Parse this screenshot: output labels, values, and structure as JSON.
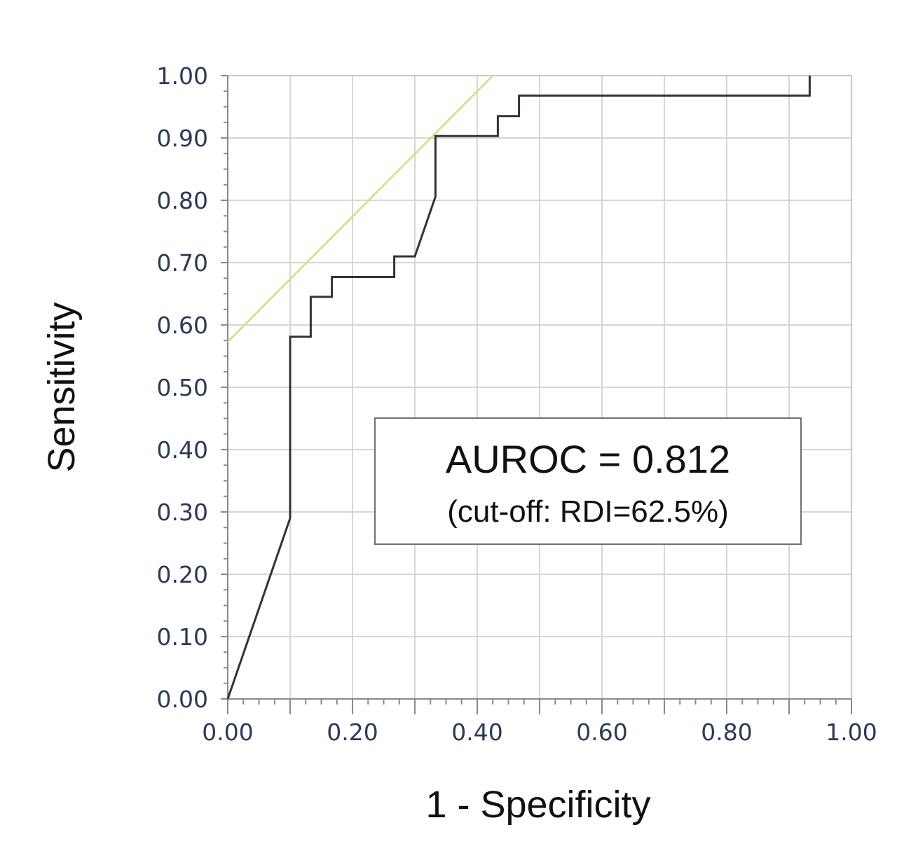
{
  "chart_data": {
    "type": "line",
    "xlabel": "1 - Specificity",
    "ylabel": "Sensitivity",
    "xlim": [
      0,
      1
    ],
    "ylim": [
      0,
      1
    ],
    "x_ticks": [
      "0.00",
      "0.20",
      "0.40",
      "0.60",
      "0.80",
      "1.00"
    ],
    "y_ticks": [
      "0.00",
      "0.10",
      "0.20",
      "0.30",
      "0.40",
      "0.50",
      "0.60",
      "0.70",
      "0.80",
      "0.90",
      "1.00"
    ],
    "grid": true,
    "series": [
      {
        "type": "step",
        "color": "#333333",
        "x": [
          0.0,
          0.1,
          0.1,
          0.133,
          0.133,
          0.167,
          0.167,
          0.267,
          0.267,
          0.3,
          0.333,
          0.333,
          0.433,
          0.433,
          0.467,
          0.467,
          0.933,
          0.933
        ],
        "y": [
          0.0,
          0.29,
          0.581,
          0.581,
          0.645,
          0.645,
          0.677,
          0.677,
          0.71,
          0.71,
          0.806,
          0.903,
          0.903,
          0.935,
          0.935,
          0.968,
          0.968,
          1.0
        ]
      },
      {
        "type": "reference-line",
        "color": "#d9d97a",
        "x": [
          0.0,
          0.425
        ],
        "y": [
          0.573,
          1.0
        ]
      }
    ],
    "annotation": {
      "line1": "AUROC = 0.812",
      "line2": "(cut-off: RDI=62.5%)"
    }
  }
}
